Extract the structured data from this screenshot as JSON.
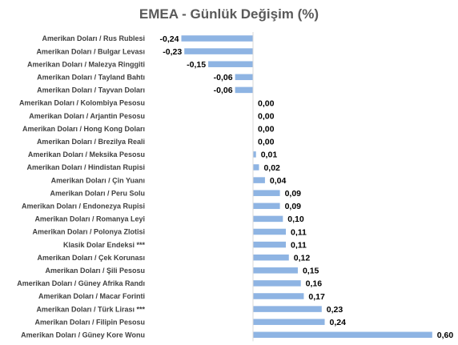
{
  "chart_data": {
    "type": "bar",
    "orientation": "horizontal",
    "title": "EMEA - Günlük Değişim (%)",
    "xlabel": "",
    "ylabel": "",
    "xlim": [
      -0.3,
      0.6
    ],
    "grid": false,
    "legend": "none",
    "bar_color": "#8EB4E3",
    "categories": [
      "Amerikan Doları / Rus Rublesi",
      "Amerikan Doları / Bulgar Levası",
      "Amerikan Doları / Malezya Ringgiti",
      "Amerikan Doları / Tayland Bahtı",
      "Amerikan Doları / Tayvan Doları",
      "Amerikan Doları / Kolombiya Pesosu",
      "Amerikan Doları / Arjantin Pesosu",
      "Amerikan Doları / Hong Kong Doları",
      "Amerikan Doları / Brezilya Reali",
      "Amerikan Doları / Meksika Pesosu",
      "Amerikan Doları / Hindistan Rupisi",
      "Amerikan Doları / Çin Yuanı",
      "Amerikan Doları / Peru Solu",
      "Amerikan Doları / Endonezya Rupisi",
      "Amerikan Doları / Romanya Leyi",
      "Amerikan Doları / Polonya Zlotisi",
      "Klasik Dolar Endeksi ***",
      "Amerikan Doları / Çek Korunası",
      "Amerikan Doları / Şili Pesosu",
      "Amerikan Doları / Güney Afrika Randı",
      "Amerikan Doları / Macar Forinti",
      "Amerikan Doları / Türk Lirası ***",
      "Amerikan Doları / Filipin Pesosu",
      "Amerikan Doları / Güney Kore Wonu"
    ],
    "values": [
      -0.24,
      -0.23,
      -0.15,
      -0.06,
      -0.06,
      0.0,
      0.0,
      0.0,
      0.0,
      0.01,
      0.02,
      0.04,
      0.09,
      0.09,
      0.1,
      0.11,
      0.11,
      0.12,
      0.15,
      0.16,
      0.17,
      0.23,
      0.24,
      0.6
    ],
    "value_labels": [
      "-0,24",
      "-0,23",
      "-0,15",
      "-0,06",
      "-0,06",
      "0,00",
      "0,00",
      "0,00",
      "0,00",
      "0,01",
      "0,02",
      "0,04",
      "0,09",
      "0,09",
      "0,10",
      "0,11",
      "0,11",
      "0,12",
      "0,15",
      "0,16",
      "0,17",
      "0,23",
      "0,24",
      "0,60"
    ]
  }
}
